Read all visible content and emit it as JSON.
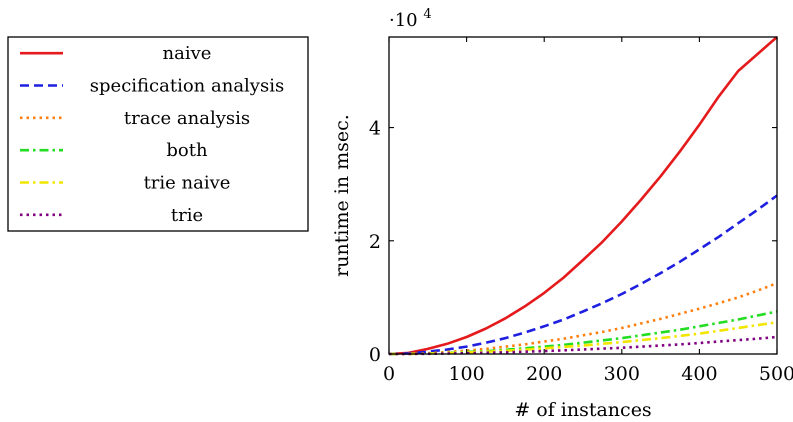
{
  "chart_data": {
    "type": "line",
    "title": "",
    "xlabel": "# of instances",
    "ylabel": "runtime in msec.",
    "y_multiplier": "·10",
    "y_multiplier_exp": "4",
    "xlim": [
      0,
      500
    ],
    "ylim": [
      0,
      5.6
    ],
    "xticks": [
      "0",
      "100",
      "200",
      "300",
      "400",
      "500"
    ],
    "yticks": [
      "0",
      "2",
      "4"
    ],
    "grid": false,
    "legend_position": "outside-left",
    "x": [
      0,
      25,
      50,
      75,
      100,
      125,
      150,
      175,
      200,
      225,
      250,
      275,
      300,
      325,
      350,
      375,
      400,
      425,
      450,
      475,
      500
    ],
    "series": [
      {
        "name": "naive",
        "color": "#e41a1c",
        "dash": "solid",
        "values": [
          0,
          0.02,
          0.09,
          0.18,
          0.3,
          0.45,
          0.63,
          0.84,
          1.08,
          1.35,
          1.66,
          1.98,
          2.34,
          2.73,
          3.14,
          3.58,
          4.05,
          4.55,
          5.0,
          5.3,
          5.6
        ]
      },
      {
        "name": "specification analysis",
        "color": "#1f1fe0",
        "dash": "dashed",
        "values": [
          0,
          0.01,
          0.04,
          0.08,
          0.13,
          0.2,
          0.28,
          0.38,
          0.49,
          0.61,
          0.75,
          0.9,
          1.06,
          1.24,
          1.43,
          1.63,
          1.85,
          2.07,
          2.31,
          2.55,
          2.8
        ]
      },
      {
        "name": "trace analysis",
        "color": "#ff7f0e",
        "dash": "dotted",
        "values": [
          0,
          0.005,
          0.015,
          0.035,
          0.06,
          0.09,
          0.13,
          0.17,
          0.22,
          0.27,
          0.33,
          0.39,
          0.46,
          0.54,
          0.62,
          0.71,
          0.8,
          0.9,
          1.0,
          1.12,
          1.25
        ]
      },
      {
        "name": "both",
        "color": "#22dd22",
        "dash": "dashdot",
        "values": [
          0,
          0.003,
          0.01,
          0.02,
          0.035,
          0.05,
          0.075,
          0.1,
          0.13,
          0.16,
          0.2,
          0.24,
          0.28,
          0.33,
          0.38,
          0.43,
          0.49,
          0.55,
          0.61,
          0.68,
          0.75
        ]
      },
      {
        "name": "trie naive",
        "color": "#f2e600",
        "dash": "dashdot",
        "values": [
          0,
          0.002,
          0.008,
          0.016,
          0.027,
          0.04,
          0.057,
          0.076,
          0.1,
          0.125,
          0.15,
          0.18,
          0.21,
          0.245,
          0.28,
          0.32,
          0.36,
          0.41,
          0.46,
          0.51,
          0.56
        ]
      },
      {
        "name": "trie",
        "color": "#800080",
        "dash": "dotted",
        "values": [
          0,
          0.001,
          0.004,
          0.008,
          0.014,
          0.021,
          0.03,
          0.04,
          0.052,
          0.065,
          0.08,
          0.095,
          0.11,
          0.13,
          0.15,
          0.17,
          0.195,
          0.22,
          0.245,
          0.27,
          0.3
        ]
      }
    ]
  }
}
